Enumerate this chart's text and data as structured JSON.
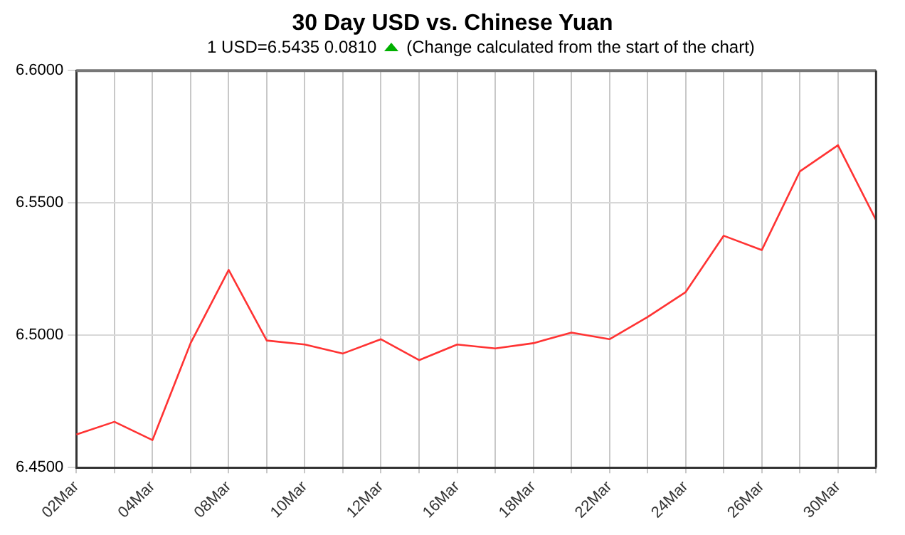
{
  "chart_data": {
    "type": "line",
    "title": "30 Day USD vs. Chinese Yuan",
    "subtitle": "1 USD=6.5435  0.0810",
    "annotations": [
      "(Change calculated from the start of the chart)"
    ],
    "categories": [
      "02Mar",
      null,
      "04Mar",
      null,
      "08Mar",
      null,
      "10Mar",
      null,
      "12Mar",
      null,
      "16Mar",
      null,
      "18Mar",
      null,
      "22Mar",
      null,
      "24Mar",
      null,
      "26Mar",
      null,
      "30Mar",
      null
    ],
    "series": [
      {
        "color": "#ff3333",
        "values": [
          6.4625,
          6.4673,
          6.4604,
          6.497,
          6.5247,
          6.498,
          6.4965,
          6.4931,
          6.4985,
          6.4906,
          6.4965,
          6.495,
          6.497,
          6.501,
          6.4985,
          6.5069,
          6.5163,
          6.5376,
          6.5322,
          6.5619,
          6.5718,
          6.5435
        ]
      }
    ],
    "ylim": [
      6.45,
      6.6
    ],
    "yticks": [
      {
        "value": 6.45,
        "label": "6.4500"
      },
      {
        "value": 6.5,
        "label": "6.5000"
      },
      {
        "value": 6.55,
        "label": "6.5500"
      },
      {
        "value": 6.6,
        "label": "6.6000"
      }
    ],
    "grid": true,
    "legend": false,
    "marker": "none",
    "line_style": "solid"
  }
}
